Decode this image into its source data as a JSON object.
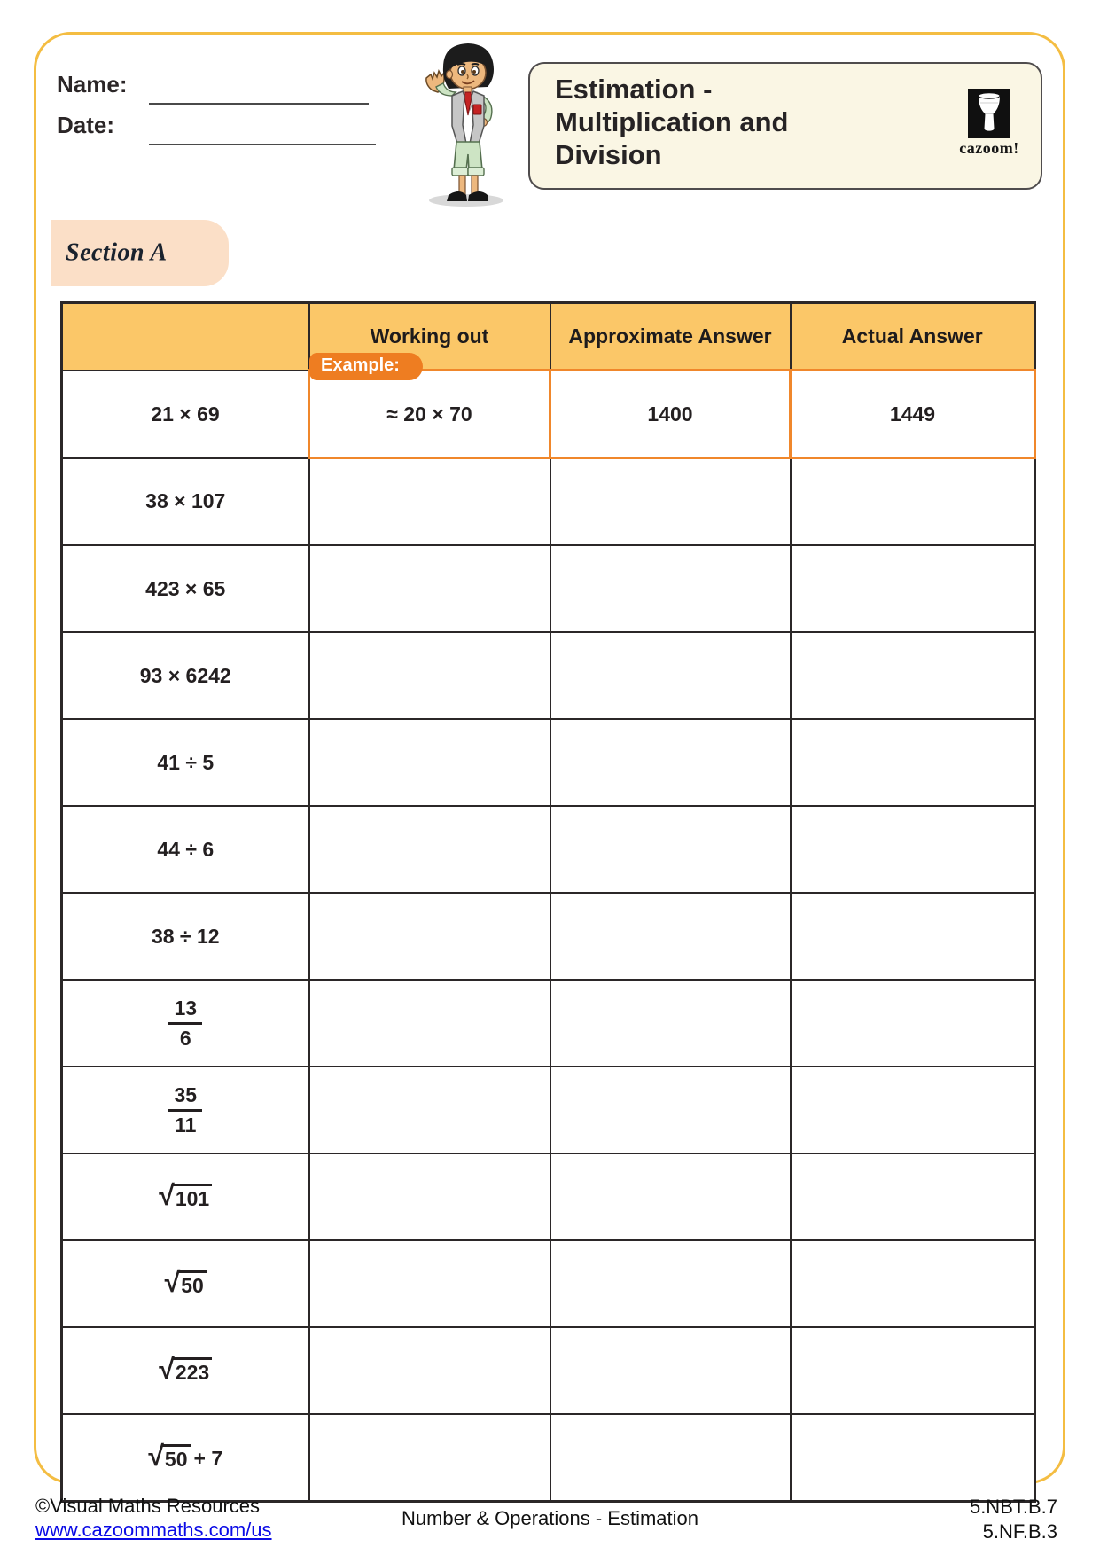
{
  "header": {
    "name_label": "Name:",
    "date_label": "Date:",
    "title_lines": [
      "Estimation -",
      "Multiplication and",
      "Division"
    ],
    "logo_text": "cazoom!"
  },
  "section": {
    "label": "Section A"
  },
  "table": {
    "headers": [
      "",
      "Working out",
      "Approximate Answer",
      "Actual Answer"
    ],
    "example_badge_label": "Example:",
    "rows": [
      {
        "is_example": true,
        "expression": {
          "type": "text",
          "value": "21 × 69"
        },
        "working": "≈ 20 × 70",
        "approximate": "1400",
        "actual": "1449"
      },
      {
        "expression": {
          "type": "text",
          "value": "38 × 107"
        },
        "working": "",
        "approximate": "",
        "actual": ""
      },
      {
        "expression": {
          "type": "text",
          "value": "423 × 65"
        },
        "working": "",
        "approximate": "",
        "actual": ""
      },
      {
        "expression": {
          "type": "text",
          "value": "93 × 6242"
        },
        "working": "",
        "approximate": "",
        "actual": ""
      },
      {
        "expression": {
          "type": "text",
          "value": "41 ÷ 5"
        },
        "working": "",
        "approximate": "",
        "actual": ""
      },
      {
        "expression": {
          "type": "text",
          "value": "44 ÷ 6"
        },
        "working": "",
        "approximate": "",
        "actual": ""
      },
      {
        "expression": {
          "type": "text",
          "value": "38 ÷ 12"
        },
        "working": "",
        "approximate": "",
        "actual": ""
      },
      {
        "expression": {
          "type": "fraction",
          "numerator": "13",
          "denominator": "6"
        },
        "working": "",
        "approximate": "",
        "actual": ""
      },
      {
        "expression": {
          "type": "fraction",
          "numerator": "35",
          "denominator": "11"
        },
        "working": "",
        "approximate": "",
        "actual": ""
      },
      {
        "expression": {
          "type": "sqrt",
          "radicand": "101"
        },
        "working": "",
        "approximate": "",
        "actual": ""
      },
      {
        "expression": {
          "type": "sqrt",
          "radicand": "50"
        },
        "working": "",
        "approximate": "",
        "actual": ""
      },
      {
        "expression": {
          "type": "sqrt",
          "radicand": "223"
        },
        "working": "",
        "approximate": "",
        "actual": ""
      },
      {
        "expression": {
          "type": "sqrt",
          "radicand": "50",
          "suffix": "+ 7"
        },
        "working": "",
        "approximate": "",
        "actual": ""
      }
    ]
  },
  "footer": {
    "copyright": "©Visual Maths Resources",
    "link": "www.cazoommaths.com/us",
    "center": "Number & Operations - Estimation",
    "codes": [
      "5.NBT.B.7",
      "5.NF.B.3"
    ]
  },
  "colors": {
    "frame_border": "#F4BD42",
    "header_fill": "#FBC768",
    "example_orange": "#EE7D21",
    "example_border": "#F0872B",
    "section_fill": "#FBDFC7",
    "title_box_fill": "#FAF6E4",
    "link_blue": "#0A0AE6"
  }
}
